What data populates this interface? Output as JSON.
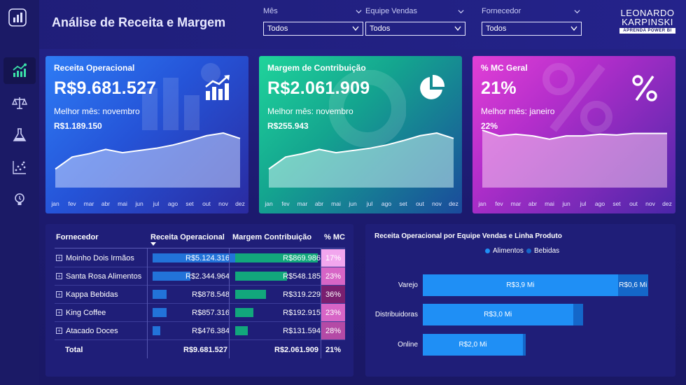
{
  "header": {
    "title": "Análise de Receita e Margem",
    "filters": [
      {
        "label": "Mês",
        "value": "Todos"
      },
      {
        "label": "Equipe Vendas",
        "value": "Todos"
      },
      {
        "label": "Fornecedor",
        "value": "Todos"
      }
    ],
    "brand": {
      "line1": "LEONARDO",
      "line2": "KARPINSKI",
      "line3": "APRENDA POWER BI"
    }
  },
  "sidebar": {
    "items": [
      "chart-up-icon",
      "scale-icon",
      "flask-icon",
      "scatter-icon",
      "lightbulb-icon"
    ]
  },
  "kpis": [
    {
      "title": "Receita Operacional",
      "value": "R$9.681.527",
      "best_label": "Melhor mês: novembro",
      "best_value": "R$1.189.150",
      "icon": "bar-chart-icon"
    },
    {
      "title": "Margem de Contribuição",
      "value": "R$2.061.909",
      "best_label": "Melhor mês: novembro",
      "best_value": "R$255.943",
      "icon": "pie-chart-icon"
    },
    {
      "title": "% MC Geral",
      "value": "21%",
      "best_label": "Melhor mês: janeiro",
      "best_value": "22%",
      "icon": "percent-icon"
    }
  ],
  "months": [
    "jan",
    "fev",
    "mar",
    "abr",
    "mai",
    "jun",
    "jul",
    "ago",
    "set",
    "out",
    "nov",
    "dez"
  ],
  "sparklines": {
    "receita": [
      0.34,
      0.56,
      0.62,
      0.7,
      0.64,
      0.68,
      0.72,
      0.78,
      0.86,
      0.95,
      1.0,
      0.9
    ],
    "margem": [
      0.34,
      0.56,
      0.62,
      0.7,
      0.64,
      0.68,
      0.72,
      0.78,
      0.86,
      0.95,
      1.0,
      0.9
    ],
    "mc": [
      22.0,
      21.3,
      21.5,
      21.3,
      20.9,
      21.3,
      21.3,
      21.5,
      21.4,
      21.6,
      21.6,
      21.6
    ]
  },
  "table": {
    "headers": [
      "Fornecedor",
      "Receita Operacional",
      "Margem Contribuição",
      "% MC"
    ],
    "rows": [
      {
        "name": "Moinho Dois Irmãos",
        "receita": "R$5.124.316",
        "receita_frac": 1.0,
        "margem": "R$869.986",
        "margem_frac": 1.0,
        "pct": "17%",
        "pct_color": "#f2a6ee"
      },
      {
        "name": "Santa Rosa Alimentos",
        "receita": "R$2.344.964",
        "receita_frac": 0.46,
        "margem": "R$548.185",
        "margem_frac": 0.63,
        "pct": "23%",
        "pct_color": "#d765c6"
      },
      {
        "name": "Kappa Bebidas",
        "receita": "R$878.548",
        "receita_frac": 0.17,
        "margem": "R$319.229",
        "margem_frac": 0.37,
        "pct": "36%",
        "pct_color": "#7a1f70"
      },
      {
        "name": "King Coffee",
        "receita": "R$857.316",
        "receita_frac": 0.17,
        "margem": "R$192.915",
        "margem_frac": 0.22,
        "pct": "23%",
        "pct_color": "#d765c6"
      },
      {
        "name": "Atacado Doces",
        "receita": "R$476.384",
        "receita_frac": 0.09,
        "margem": "R$131.594",
        "margem_frac": 0.15,
        "pct": "28%",
        "pct_color": "#b44aa6"
      }
    ],
    "total": {
      "label": "Total",
      "receita": "R$9.681.527",
      "margem": "R$2.061.909",
      "pct": "21%"
    }
  },
  "chart_data": {
    "type": "bar",
    "title": "Receita Operacional por Equipe Vendas e Linha Produto",
    "categories": [
      "Varejo",
      "Distribuidoras",
      "Online"
    ],
    "series": [
      {
        "name": "Alimentos",
        "values": [
          3.9,
          3.0,
          2.0
        ],
        "labels": [
          "R$3,9 Mi",
          "R$3,0 Mi",
          "R$2,0 Mi"
        ],
        "color": "#1f8ff5"
      },
      {
        "name": "Bebidas",
        "values": [
          0.6,
          0.2,
          0.05
        ],
        "labels": [
          "R$0,6 Mi",
          "",
          ""
        ],
        "color": "#1467c9"
      }
    ],
    "xlim": [
      0,
      4.5
    ],
    "legend": "top-center",
    "stacked": true
  }
}
